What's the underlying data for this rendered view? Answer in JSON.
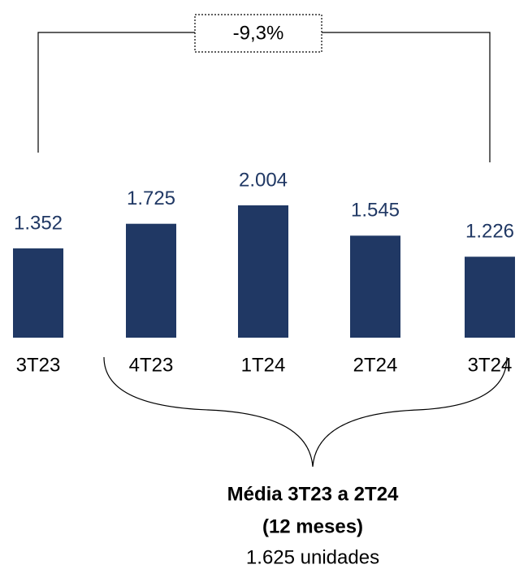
{
  "chart_data": {
    "type": "bar",
    "categories": [
      "3T23",
      "4T23",
      "1T24",
      "2T24",
      "3T24"
    ],
    "values": [
      1352,
      1725,
      2004,
      1545,
      1226
    ],
    "value_labels": [
      "1.352",
      "1.725",
      "2.004",
      "1.545",
      "1.226"
    ],
    "color": "#203864",
    "annotations": {
      "change": "-9,3%",
      "average_title": "Média 3T23 a 2T24",
      "average_period": "(12 meses)",
      "average_value": "1.625 unidades"
    }
  }
}
